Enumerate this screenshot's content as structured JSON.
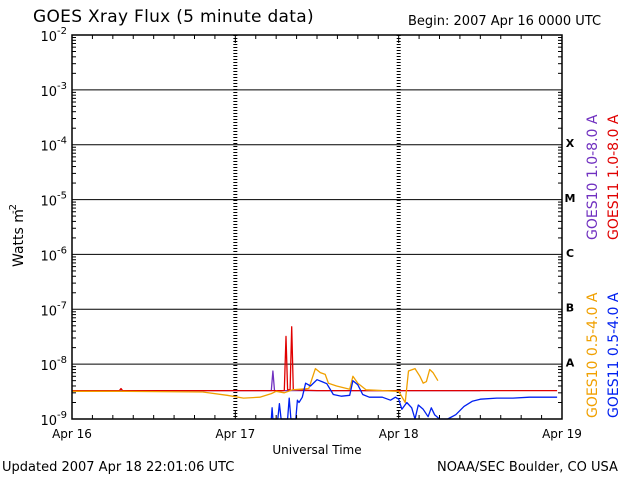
{
  "header": {
    "title": "GOES Xray Flux (5 minute data)",
    "begin": "Begin:  2007 Apr 16 0000 UTC"
  },
  "footer": {
    "updated": "Updated 2007 Apr 18 22:01:06 UTC",
    "credit": "NOAA/SEC Boulder, CO USA"
  },
  "colors": {
    "goes10_long": "#7030c0",
    "goes11_long": "#e00000",
    "goes10_short": "#f0a000",
    "goes11_short": "#0020f0",
    "frame": "#000000"
  },
  "chart_data": {
    "type": "line",
    "title": "GOES Xray Flux (5 minute data)",
    "xlabel": "Universal Time",
    "ylabel": "Watts m",
    "ylabel_superscript": "-2",
    "yscale": "log",
    "ylim": [
      1e-09,
      0.01
    ],
    "y_ticks": [
      {
        "base": "10",
        "exp": "-2"
      },
      {
        "base": "10",
        "exp": "-3"
      },
      {
        "base": "10",
        "exp": "-4"
      },
      {
        "base": "10",
        "exp": "-5"
      },
      {
        "base": "10",
        "exp": "-6"
      },
      {
        "base": "10",
        "exp": "-7"
      },
      {
        "base": "10",
        "exp": "-8"
      },
      {
        "base": "10",
        "exp": "-9"
      }
    ],
    "x_ticks": [
      "Apr 16",
      "Apr 17",
      "Apr 18",
      "Apr 19"
    ],
    "xlim_days": [
      0,
      3
    ],
    "flare_classes": [
      "X",
      "M",
      "C",
      "B",
      "A"
    ],
    "legend_long": [
      {
        "label": "GOES10 1.0-8.0 A",
        "color": "#7030c0"
      },
      {
        "label": "GOES11 1.0-8.0 A",
        "color": "#e00000"
      }
    ],
    "legend_short": [
      {
        "label": "GOES10 0.5-4.0 A",
        "color": "#f0a000"
      },
      {
        "label": "GOES11 0.5-4.0 A",
        "color": "#0020f0"
      }
    ],
    "series": [
      {
        "name": "GOES10 1.0-8.0 A",
        "color": "#7030c0",
        "points": [
          [
            0,
            3.3e-09
          ],
          [
            0.3,
            3.3e-09
          ],
          [
            1.22,
            3.3e-09
          ],
          [
            1.23,
            7.5e-09
          ],
          [
            1.24,
            3.3e-09
          ],
          [
            1.4,
            3.3e-09
          ],
          [
            2.0,
            3.3e-09
          ],
          [
            2.3,
            3.3e-09
          ],
          [
            2.5,
            3.3e-09
          ]
        ]
      },
      {
        "name": "GOES11 1.0-8.0 A",
        "color": "#e00000",
        "points": [
          [
            0,
            3.3e-09
          ],
          [
            0.29,
            3.3e-09
          ],
          [
            0.3,
            3.6e-09
          ],
          [
            0.31,
            3.3e-09
          ],
          [
            1.3,
            3.3e-09
          ],
          [
            1.31,
            3.2e-08
          ],
          [
            1.32,
            3.4e-09
          ],
          [
            1.335,
            3.4e-09
          ],
          [
            1.345,
            4.8e-08
          ],
          [
            1.355,
            3.4e-09
          ],
          [
            1.5,
            3.3e-09
          ],
          [
            2.0,
            3.3e-09
          ],
          [
            2.5,
            3.3e-09
          ],
          [
            2.8,
            3.3e-09
          ],
          [
            2.97,
            3.3e-09
          ]
        ]
      },
      {
        "name": "GOES10 0.5-4.0 A",
        "color": "#f0a000",
        "points": [
          [
            0,
            3.2e-09
          ],
          [
            0.3,
            3.2e-09
          ],
          [
            0.8,
            3.1e-09
          ],
          [
            0.95,
            2.7e-09
          ],
          [
            1.05,
            2.4e-09
          ],
          [
            1.15,
            2.5e-09
          ],
          [
            1.22,
            2.9e-09
          ],
          [
            1.25,
            3.2e-09
          ],
          [
            1.3,
            3e-09
          ],
          [
            1.35,
            3.4e-09
          ],
          [
            1.4,
            3.5e-09
          ],
          [
            1.45,
            3.6e-09
          ],
          [
            1.49,
            8.3e-09
          ],
          [
            1.52,
            7e-09
          ],
          [
            1.55,
            6.5e-09
          ],
          [
            1.57,
            4.5e-09
          ],
          [
            1.62,
            4e-09
          ],
          [
            1.7,
            3.5e-09
          ],
          [
            1.72,
            6e-09
          ],
          [
            1.75,
            4.5e-09
          ],
          [
            1.8,
            3.4e-09
          ],
          [
            1.9,
            3.3e-09
          ],
          [
            2.0,
            3.2e-09
          ],
          [
            2.04,
            2e-09
          ],
          [
            2.06,
            7.5e-09
          ],
          [
            2.1,
            8.3e-09
          ],
          [
            2.13,
            6e-09
          ],
          [
            2.15,
            4.5e-09
          ],
          [
            2.17,
            4.8e-09
          ],
          [
            2.19,
            8e-09
          ],
          [
            2.21,
            7e-09
          ],
          [
            2.24,
            5e-09
          ]
        ]
      },
      {
        "name": "GOES11 0.5-4.0 A",
        "color": "#0020f0",
        "points": [
          [
            1.22,
            1e-09
          ],
          [
            1.225,
            1.6e-09
          ],
          [
            1.23,
            1e-09
          ],
          [
            1.26,
            1e-09
          ],
          [
            1.27,
            1.9e-09
          ],
          [
            1.28,
            1e-09
          ],
          [
            1.32,
            1e-09
          ],
          [
            1.33,
            2.4e-09
          ],
          [
            1.34,
            1e-09
          ],
          [
            1.37,
            1e-09
          ],
          [
            1.38,
            2.2e-09
          ],
          [
            1.39,
            2e-09
          ],
          [
            1.41,
            2.5e-09
          ],
          [
            1.43,
            4.5e-09
          ],
          [
            1.46,
            4e-09
          ],
          [
            1.5,
            5.2e-09
          ],
          [
            1.53,
            4.8e-09
          ],
          [
            1.56,
            4.4e-09
          ],
          [
            1.6,
            2.8e-09
          ],
          [
            1.65,
            2.6e-09
          ],
          [
            1.7,
            2.7e-09
          ],
          [
            1.72,
            5e-09
          ],
          [
            1.75,
            4.2e-09
          ],
          [
            1.78,
            2.8e-09
          ],
          [
            1.82,
            2.5e-09
          ],
          [
            1.9,
            2.5e-09
          ],
          [
            1.95,
            2.2e-09
          ],
          [
            1.98,
            2.5e-09
          ],
          [
            2.0,
            2.3e-09
          ],
          [
            2.02,
            1.5e-09
          ],
          [
            2.05,
            2e-09
          ],
          [
            2.08,
            1.6e-09
          ],
          [
            2.1,
            1e-09
          ],
          [
            2.12,
            1.8e-09
          ],
          [
            2.15,
            1.5e-09
          ],
          [
            2.18,
            1.1e-09
          ],
          [
            2.2,
            1.6e-09
          ],
          [
            2.22,
            1.2e-09
          ],
          [
            2.25,
            1e-09
          ],
          [
            2.3,
            1e-09
          ],
          [
            2.35,
            1.2e-09
          ],
          [
            2.4,
            1.7e-09
          ],
          [
            2.45,
            2.1e-09
          ],
          [
            2.5,
            2.3e-09
          ],
          [
            2.6,
            2.4e-09
          ],
          [
            2.7,
            2.4e-09
          ],
          [
            2.8,
            2.5e-09
          ],
          [
            2.9,
            2.5e-09
          ],
          [
            2.97,
            2.5e-09
          ]
        ]
      }
    ]
  }
}
